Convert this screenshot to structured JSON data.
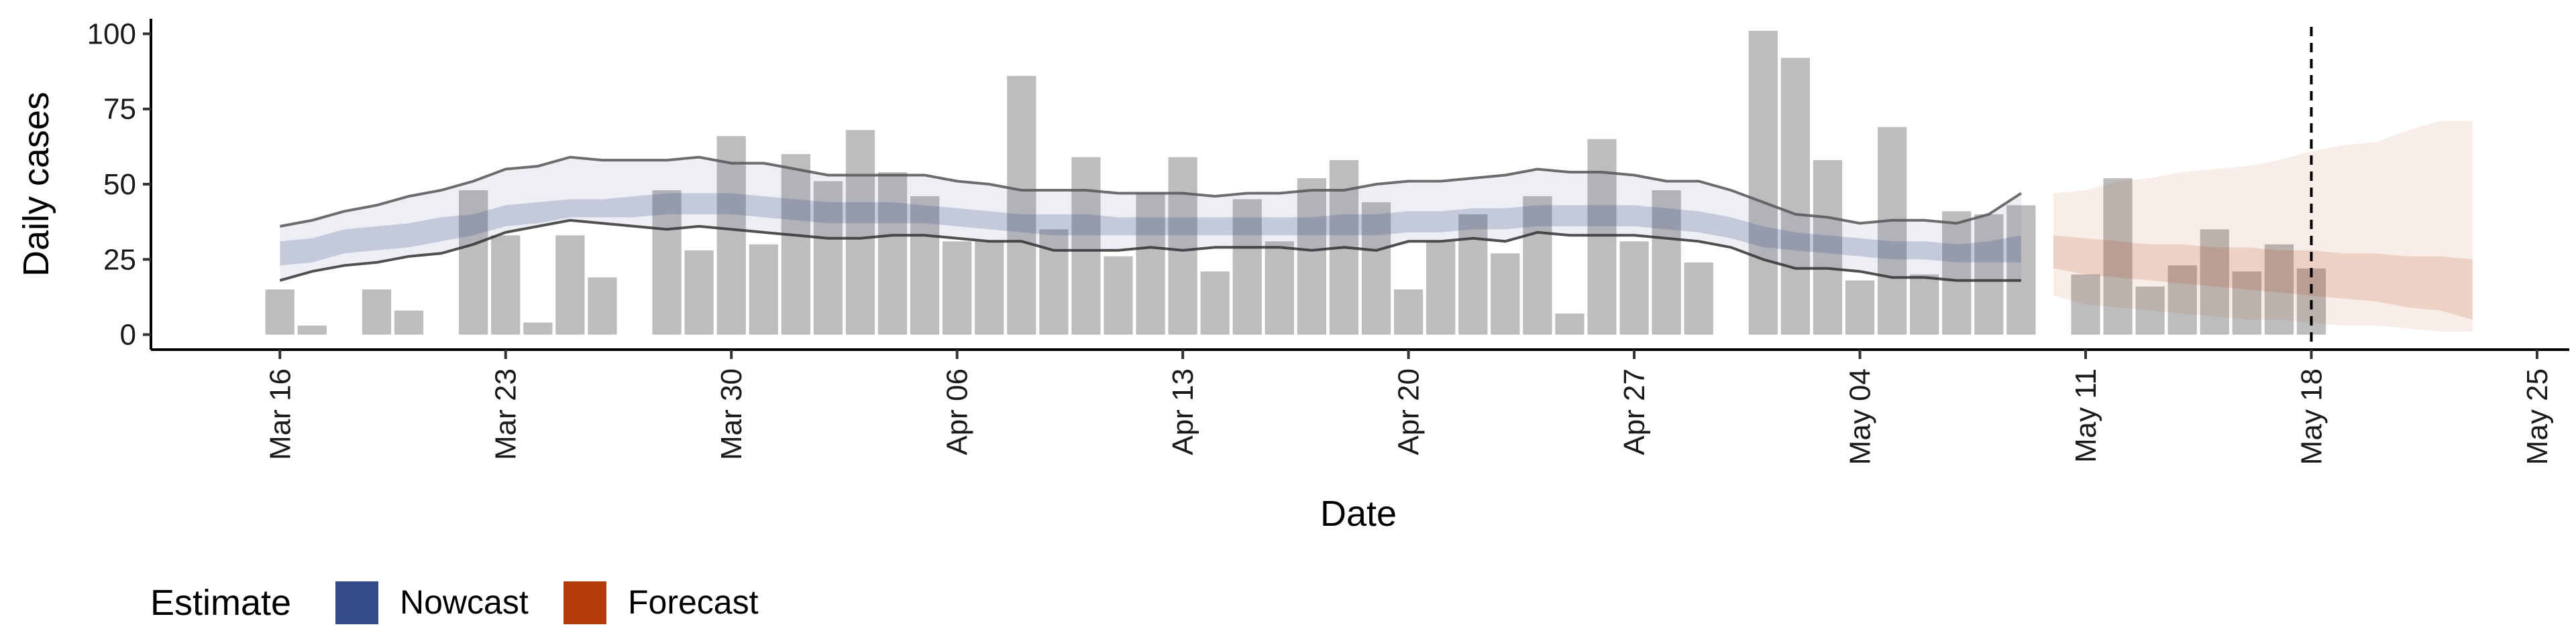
{
  "chart_data": {
    "type": "bar",
    "xlabel": "Date",
    "ylabel": "Daily cases",
    "ylim": [
      -5,
      105
    ],
    "yticks": [
      0,
      25,
      50,
      75,
      100
    ],
    "xlim": [
      "2020-03-12",
      "2020-05-26"
    ],
    "xticks": [
      {
        "date": "2020-03-16",
        "label": "Mar 16"
      },
      {
        "date": "2020-03-23",
        "label": "Mar 23"
      },
      {
        "date": "2020-03-30",
        "label": "Mar 30"
      },
      {
        "date": "2020-04-06",
        "label": "Apr 06"
      },
      {
        "date": "2020-04-13",
        "label": "Apr 13"
      },
      {
        "date": "2020-04-20",
        "label": "Apr 20"
      },
      {
        "date": "2020-04-27",
        "label": "Apr 27"
      },
      {
        "date": "2020-05-04",
        "label": "May 04"
      },
      {
        "date": "2020-05-11",
        "label": "May 11"
      },
      {
        "date": "2020-05-18",
        "label": "May 18"
      },
      {
        "date": "2020-05-25",
        "label": "May 25"
      }
    ],
    "grid": false,
    "legend": {
      "title": "Estimate",
      "placement": "bottom-left",
      "entries": [
        {
          "name": "Nowcast",
          "color": "#344B8A"
        },
        {
          "name": "Forecast",
          "color": "#B53C0A"
        }
      ]
    },
    "vline": {
      "date": "2020-05-18",
      "style": "dashed"
    },
    "bars": {
      "color": "#bdbdbd",
      "points": [
        [
          "2020-03-16",
          15
        ],
        [
          "2020-03-17",
          3
        ],
        [
          "2020-03-19",
          15
        ],
        [
          "2020-03-20",
          8
        ],
        [
          "2020-03-22",
          48
        ],
        [
          "2020-03-23",
          33
        ],
        [
          "2020-03-24",
          4
        ],
        [
          "2020-03-25",
          33
        ],
        [
          "2020-03-26",
          19
        ],
        [
          "2020-03-28",
          48
        ],
        [
          "2020-03-29",
          28
        ],
        [
          "2020-03-30",
          66
        ],
        [
          "2020-03-31",
          30
        ],
        [
          "2020-04-01",
          60
        ],
        [
          "2020-04-02",
          51
        ],
        [
          "2020-04-03",
          68
        ],
        [
          "2020-04-04",
          54
        ],
        [
          "2020-04-05",
          46
        ],
        [
          "2020-04-06",
          31
        ],
        [
          "2020-04-07",
          31
        ],
        [
          "2020-04-08",
          86
        ],
        [
          "2020-04-09",
          35
        ],
        [
          "2020-04-10",
          59
        ],
        [
          "2020-04-11",
          26
        ],
        [
          "2020-04-12",
          47
        ],
        [
          "2020-04-13",
          59
        ],
        [
          "2020-04-14",
          21
        ],
        [
          "2020-04-15",
          45
        ],
        [
          "2020-04-16",
          31
        ],
        [
          "2020-04-17",
          52
        ],
        [
          "2020-04-18",
          58
        ],
        [
          "2020-04-19",
          44
        ],
        [
          "2020-04-20",
          15
        ],
        [
          "2020-04-21",
          31
        ],
        [
          "2020-04-22",
          40
        ],
        [
          "2020-04-23",
          27
        ],
        [
          "2020-04-24",
          46
        ],
        [
          "2020-04-25",
          7
        ],
        [
          "2020-04-26",
          65
        ],
        [
          "2020-04-27",
          31
        ],
        [
          "2020-04-28",
          48
        ],
        [
          "2020-04-29",
          24
        ],
        [
          "2020-05-01",
          101
        ],
        [
          "2020-05-02",
          92
        ],
        [
          "2020-05-03",
          58
        ],
        [
          "2020-05-04",
          18
        ],
        [
          "2020-05-05",
          69
        ],
        [
          "2020-05-06",
          20
        ],
        [
          "2020-05-07",
          41
        ],
        [
          "2020-05-08",
          40
        ],
        [
          "2020-05-09",
          43
        ],
        [
          "2020-05-11",
          20
        ],
        [
          "2020-05-12",
          52
        ],
        [
          "2020-05-13",
          16
        ],
        [
          "2020-05-14",
          23
        ],
        [
          "2020-05-15",
          35
        ],
        [
          "2020-05-16",
          21
        ],
        [
          "2020-05-17",
          30
        ],
        [
          "2020-05-18",
          22
        ]
      ]
    },
    "nowcast": {
      "dates": [
        "2020-03-16",
        "2020-03-17",
        "2020-03-18",
        "2020-03-19",
        "2020-03-20",
        "2020-03-21",
        "2020-03-22",
        "2020-03-23",
        "2020-03-24",
        "2020-03-25",
        "2020-03-26",
        "2020-03-27",
        "2020-03-28",
        "2020-03-29",
        "2020-03-30",
        "2020-03-31",
        "2020-04-01",
        "2020-04-02",
        "2020-04-03",
        "2020-04-04",
        "2020-04-05",
        "2020-04-06",
        "2020-04-07",
        "2020-04-08",
        "2020-04-09",
        "2020-04-10",
        "2020-04-11",
        "2020-04-12",
        "2020-04-13",
        "2020-04-14",
        "2020-04-15",
        "2020-04-16",
        "2020-04-17",
        "2020-04-18",
        "2020-04-19",
        "2020-04-20",
        "2020-04-21",
        "2020-04-22",
        "2020-04-23",
        "2020-04-24",
        "2020-04-25",
        "2020-04-26",
        "2020-04-27",
        "2020-04-28",
        "2020-04-29",
        "2020-04-30",
        "2020-05-01",
        "2020-05-02",
        "2020-05-03",
        "2020-05-04",
        "2020-05-05",
        "2020-05-06",
        "2020-05-07",
        "2020-05-08",
        "2020-05-09"
      ],
      "outer_upper": [
        36,
        38,
        41,
        43,
        46,
        48,
        51,
        55,
        56,
        59,
        58,
        58,
        58,
        59,
        57,
        57,
        55,
        53,
        53,
        53,
        53,
        51,
        50,
        48,
        48,
        48,
        47,
        47,
        47,
        46,
        47,
        47,
        48,
        48,
        50,
        51,
        51,
        52,
        53,
        55,
        54,
        54,
        53,
        51,
        51,
        48,
        44,
        40,
        39,
        37,
        38,
        38,
        37,
        40,
        47
      ],
      "outer_lower": [
        18,
        21,
        23,
        24,
        26,
        27,
        30,
        34,
        36,
        38,
        37,
        36,
        35,
        36,
        35,
        34,
        33,
        32,
        32,
        33,
        33,
        32,
        31,
        31,
        28,
        28,
        28,
        29,
        28,
        29,
        29,
        29,
        28,
        29,
        28,
        31,
        31,
        32,
        31,
        34,
        33,
        33,
        33,
        32,
        31,
        29,
        25,
        22,
        22,
        21,
        19,
        19,
        18,
        18,
        18
      ],
      "inner_upper": [
        31,
        32,
        35,
        36,
        37,
        39,
        40,
        43,
        44,
        45,
        45,
        46,
        47,
        47,
        47,
        46,
        45,
        44,
        44,
        44,
        43,
        42,
        41,
        40,
        40,
        40,
        39,
        39,
        39,
        39,
        39,
        39,
        39,
        40,
        40,
        41,
        41,
        42,
        42,
        43,
        43,
        43,
        43,
        42,
        41,
        39,
        36,
        34,
        33,
        32,
        31,
        31,
        30,
        31,
        33
      ],
      "inner_lower": [
        23,
        24,
        27,
        28,
        29,
        31,
        33,
        36,
        37,
        39,
        39,
        39,
        40,
        40,
        40,
        39,
        38,
        37,
        37,
        37,
        37,
        36,
        35,
        34,
        33,
        33,
        33,
        33,
        33,
        33,
        33,
        33,
        33,
        33,
        33,
        34,
        34,
        35,
        35,
        36,
        36,
        36,
        36,
        35,
        34,
        32,
        29,
        28,
        27,
        26,
        25,
        25,
        24,
        24,
        24
      ]
    },
    "forecast": {
      "dates": [
        "2020-05-10",
        "2020-05-11",
        "2020-05-12",
        "2020-05-13",
        "2020-05-14",
        "2020-05-15",
        "2020-05-16",
        "2020-05-17",
        "2020-05-18",
        "2020-05-19",
        "2020-05-20",
        "2020-05-21",
        "2020-05-22",
        "2020-05-23"
      ],
      "outer_upper": [
        47,
        48,
        51,
        52,
        54,
        55,
        56,
        58,
        61,
        63,
        64,
        68,
        71,
        71
      ],
      "outer_lower": [
        13,
        10,
        9,
        8,
        7,
        6,
        5,
        5,
        4,
        3,
        3,
        2,
        1,
        1
      ],
      "inner_upper": [
        33,
        32,
        31,
        30,
        30,
        29,
        29,
        28,
        28,
        27,
        27,
        26,
        26,
        25
      ],
      "inner_lower": [
        22,
        20,
        19,
        18,
        17,
        16,
        15,
        14,
        13,
        12,
        11,
        9,
        8,
        5
      ]
    }
  }
}
